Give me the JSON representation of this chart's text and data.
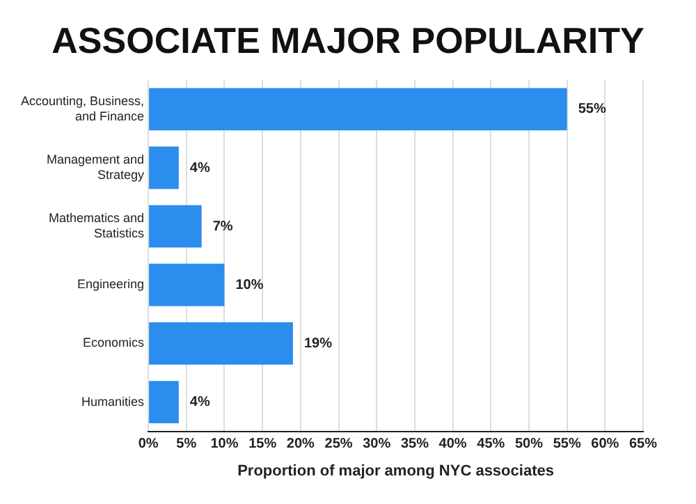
{
  "chart_data": {
    "type": "bar",
    "orientation": "horizontal",
    "title": "ASSOCIATE MAJOR POPULARITY",
    "xlabel": "Proportion of major among NYC associates",
    "categories": [
      "Accounting, Business, and Finance",
      "Management and Strategy",
      "Mathematics and Statistics",
      "Engineering",
      "Economics",
      "Humanities"
    ],
    "values": [
      55,
      4,
      7,
      10,
      19,
      4
    ],
    "color": "#2b8ded",
    "value_labels": [
      "55%",
      "4%",
      "7%",
      "10%",
      "19%",
      "4%"
    ],
    "xlim": [
      0,
      65
    ],
    "xticks": [
      {
        "value": 0,
        "label": "0%"
      },
      {
        "value": 5,
        "label": "5%"
      },
      {
        "value": 10,
        "label": "10%"
      },
      {
        "value": 15,
        "label": "15%"
      },
      {
        "value": 20,
        "label": "20%"
      },
      {
        "value": 25,
        "label": "25%"
      },
      {
        "value": 30,
        "label": "30%"
      },
      {
        "value": 35,
        "label": "35%"
      },
      {
        "value": 40,
        "label": "40%"
      },
      {
        "value": 45,
        "label": "45%"
      },
      {
        "value": 50,
        "label": "50%"
      },
      {
        "value": 55,
        "label": "55%"
      },
      {
        "value": 60,
        "label": "60%"
      },
      {
        "value": 65,
        "label": "65%"
      }
    ],
    "grid": "x",
    "legend": false
  }
}
